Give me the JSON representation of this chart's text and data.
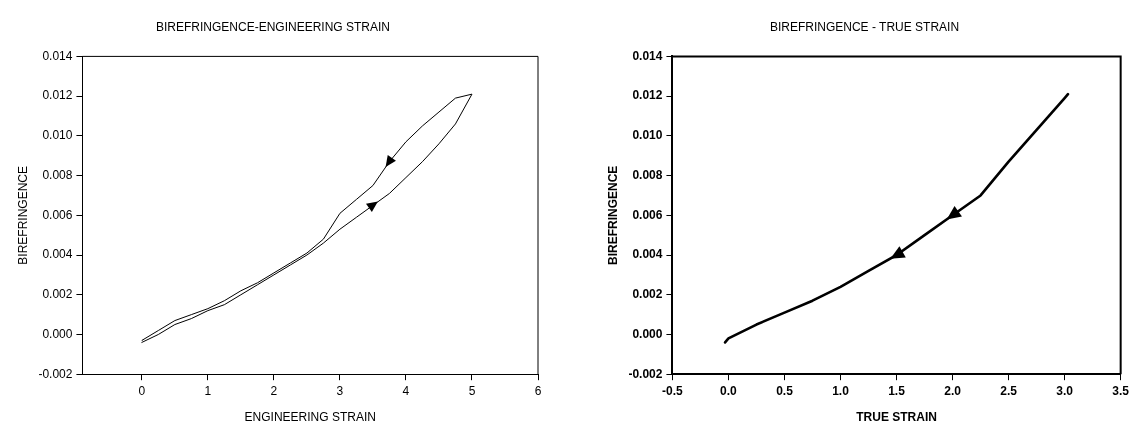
{
  "chart_data": [
    {
      "type": "line",
      "title": "BIREFRINGENCE-ENGINEERING STRAIN",
      "xlabel": "ENGINEERING STRAIN",
      "ylabel": "BIREFRINGENCE",
      "xlim": [
        -0.9,
        6
      ],
      "xticks": [
        0,
        1,
        2,
        3,
        4,
        5,
        6
      ],
      "ylim": [
        -0.002,
        0.014
      ],
      "yticks": [
        {
          "value": -0.002,
          "label": "-0.002"
        },
        {
          "value": 0,
          "label": "0.000"
        },
        {
          "value": 0.002,
          "label": "0.002"
        },
        {
          "value": 0.004,
          "label": "0.004"
        },
        {
          "value": 0.006,
          "label": "0.006"
        },
        {
          "value": 0.008,
          "label": "0.008"
        },
        {
          "value": 0.01,
          "label": "0.010"
        },
        {
          "value": 0.012,
          "label": "0.012"
        },
        {
          "value": 0.014,
          "label": "0.014"
        }
      ],
      "grid": false,
      "marker": "none",
      "line_style": "solid",
      "series": [
        {
          "color": "#000000",
          "x": [
            0,
            0.25,
            0.5,
            0.75,
            1,
            1.25,
            1.5,
            1.75,
            2,
            2.25,
            2.5,
            2.75,
            3,
            3.25,
            3.5,
            3.75,
            4,
            4.25,
            4.5,
            4.75,
            5,
            4.75,
            4.5,
            4.25,
            4,
            3.75,
            3.5,
            3.25,
            3,
            2.75,
            2.5,
            2.25,
            2,
            1.75,
            1.5,
            1.25,
            1,
            0.75,
            0.5,
            0.25,
            0
          ],
          "values": [
            -0.0003,
            0.0002,
            0.0007,
            0.001,
            0.0013,
            0.0017,
            0.0022,
            0.0026,
            0.0031,
            0.0036,
            0.0041,
            0.0048,
            0.0061,
            0.0068,
            0.0075,
            0.0087,
            0.0097,
            0.0105,
            0.0112,
            0.0119,
            0.0121,
            0.0106,
            0.0096,
            0.0087,
            0.0079,
            0.0071,
            0.0065,
            0.0059,
            0.0053,
            0.0046,
            0.004,
            0.0035,
            0.003,
            0.0025,
            0.002,
            0.0015,
            0.0012,
            0.0008,
            0.0005,
            0.0,
            -0.0004
          ]
        }
      ]
    },
    {
      "type": "line",
      "title": "BIREFRINGENCE - TRUE STRAIN",
      "xlabel": "TRUE STRAIN",
      "ylabel": "BIREFRINGENCE",
      "xlim": [
        -0.5,
        3.5
      ],
      "xticks": [
        {
          "value": -0.5,
          "label": "-0.5"
        },
        {
          "value": 0,
          "label": "0.0"
        },
        {
          "value": 0.5,
          "label": "0.5"
        },
        {
          "value": 1,
          "label": "1.0"
        },
        {
          "value": 1.5,
          "label": "1.5"
        },
        {
          "value": 2,
          "label": "2.0"
        },
        {
          "value": 2.5,
          "label": "2.5"
        },
        {
          "value": 3,
          "label": "3.0"
        },
        {
          "value": 3.5,
          "label": "3.5"
        }
      ],
      "ylim": [
        -0.002,
        0.014
      ],
      "yticks": [
        {
          "value": -0.002,
          "label": "-0.002"
        },
        {
          "value": 0,
          "label": "0.000"
        },
        {
          "value": 0.002,
          "label": "0.002"
        },
        {
          "value": 0.004,
          "label": "0.004"
        },
        {
          "value": 0.006,
          "label": "0.006"
        },
        {
          "value": 0.008,
          "label": "0.008"
        },
        {
          "value": 0.01,
          "label": "0.010"
        },
        {
          "value": 0.012,
          "label": "0.012"
        },
        {
          "value": 0.014,
          "label": "0.014"
        }
      ],
      "grid": false,
      "marker": "none",
      "line_style": "solid",
      "series": [
        {
          "color": "#000000",
          "x": [
            -0.03,
            0,
            0.25,
            0.5,
            0.75,
            1,
            1.25,
            1.5,
            1.75,
            2,
            2.25,
            2.5,
            2.75,
            3,
            3.03
          ],
          "values": [
            -0.0004,
            -0.0002,
            0.0005,
            0.0011,
            0.0017,
            0.0024,
            0.0032,
            0.004,
            0.005,
            0.006,
            0.007,
            0.0087,
            0.0103,
            0.0119,
            0.0121
          ]
        }
      ]
    }
  ]
}
